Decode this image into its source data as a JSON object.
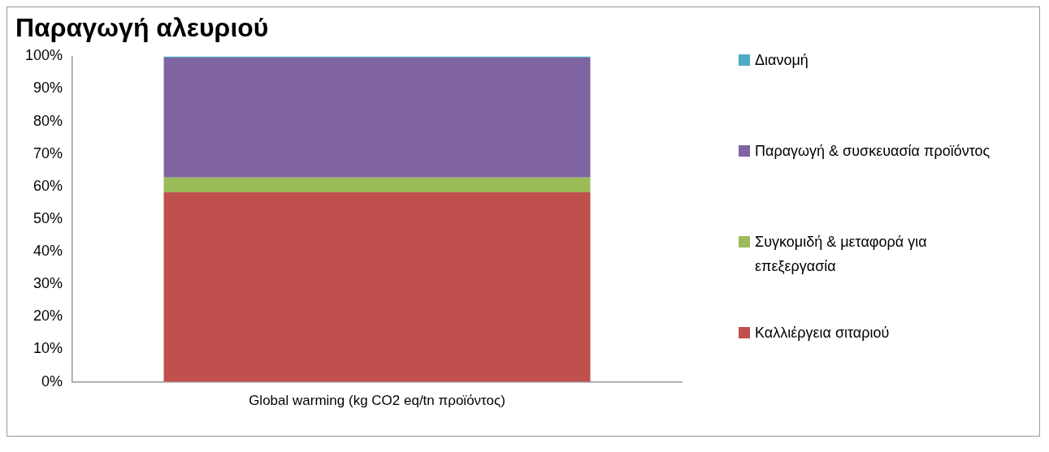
{
  "chart_data": {
    "type": "bar",
    "title": "Παραγωγή αλευριού",
    "categories": [
      "Global warming (kg CO2 eq/tn προϊόντος)"
    ],
    "series": [
      {
        "name": "Καλλιέργεια σιταριού",
        "color": "#c0504d",
        "values": [
          58.2
        ]
      },
      {
        "name": "Συγκομιδή & μεταφορά για επεξεργασία",
        "color": "#9bbb59",
        "values": [
          4.6
        ]
      },
      {
        "name": "Παραγωγή & συσκευασία προϊόντος",
        "color": "#8064a2",
        "values": [
          36.8
        ]
      },
      {
        "name": "Διανομή",
        "color": "#4bacc6",
        "values": [
          0.4
        ]
      }
    ],
    "stacked": true,
    "ylim": [
      0,
      100
    ],
    "yticks": [
      {
        "value": 0,
        "label": "0%"
      },
      {
        "value": 10,
        "label": "10%"
      },
      {
        "value": 20,
        "label": "20%"
      },
      {
        "value": 30,
        "label": "30%"
      },
      {
        "value": 40,
        "label": "40%"
      },
      {
        "value": 50,
        "label": "50%"
      },
      {
        "value": 60,
        "label": "60%"
      },
      {
        "value": 70,
        "label": "70%"
      },
      {
        "value": 80,
        "label": "80%"
      },
      {
        "value": 90,
        "label": "90%"
      },
      {
        "value": 100,
        "label": "100%"
      }
    ],
    "grid": false,
    "legend": "right"
  }
}
